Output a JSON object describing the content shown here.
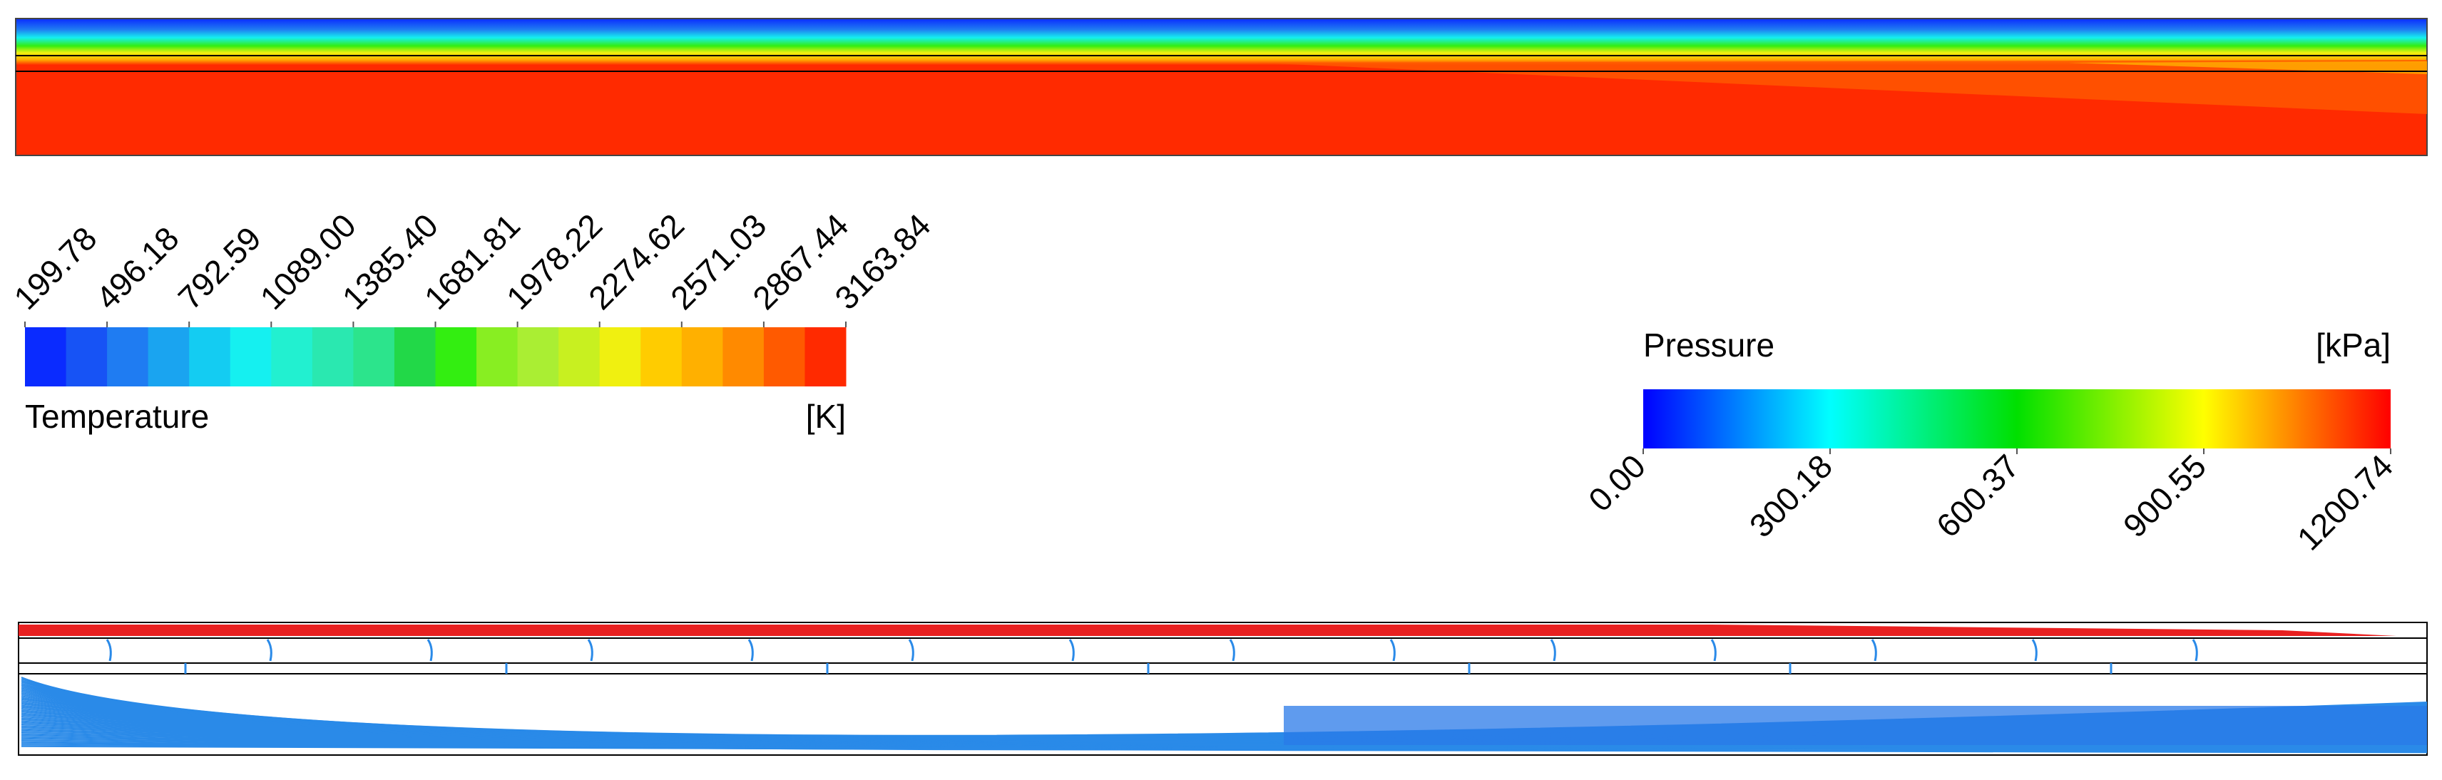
{
  "temperature_legend": {
    "title": "Temperature",
    "unit": "[K]",
    "ticks": [
      "199.78",
      "496.18",
      "792.59",
      "1089.00",
      "1385.40",
      "1681.81",
      "1978.22",
      "2274.62",
      "2571.03",
      "2867.44",
      "3163.84"
    ]
  },
  "pressure_legend": {
    "title": "Pressure",
    "unit": "[kPa]",
    "ticks": [
      "0.00",
      "300.18",
      "600.37",
      "900.55",
      "1200.74"
    ]
  }
}
